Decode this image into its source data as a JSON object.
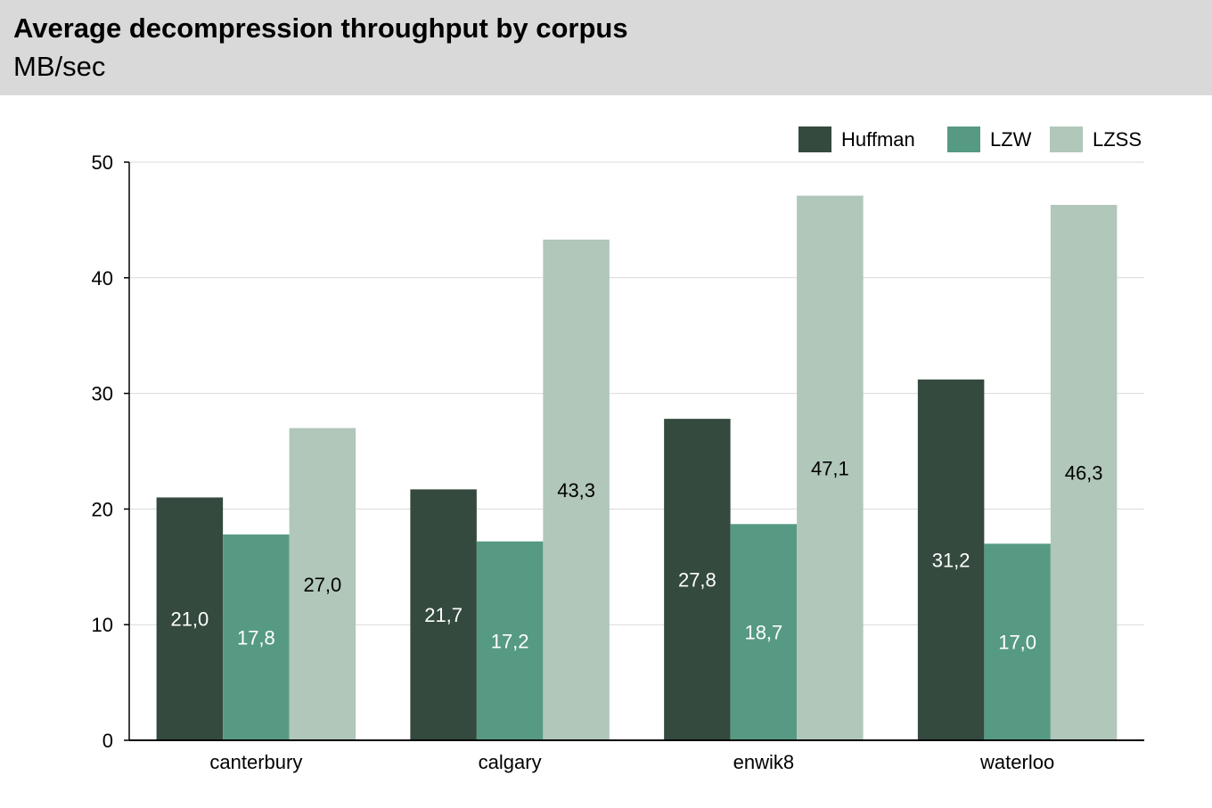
{
  "header": {
    "title": "Average decompression throughput by corpus",
    "subtitle": "MB/sec"
  },
  "chart_data": {
    "type": "bar",
    "title": "Average decompression throughput by corpus",
    "subtitle": "MB/sec",
    "xlabel": "",
    "ylabel": "",
    "categories": [
      "canterbury",
      "calgary",
      "enwik8",
      "waterloo"
    ],
    "series": [
      {
        "name": "Huffman",
        "values": [
          21.0,
          21.7,
          27.8,
          31.2
        ],
        "labels": [
          "21,0",
          "21,7",
          "27,8",
          "31,2"
        ],
        "color": "#344a3e",
        "label_color": "#ffffff"
      },
      {
        "name": "LZW",
        "values": [
          17.8,
          17.2,
          18.7,
          17.0
        ],
        "labels": [
          "17,8",
          "17,2",
          "18,7",
          "17,0"
        ],
        "color": "#579a83",
        "label_color": "#ffffff"
      },
      {
        "name": "LZSS",
        "values": [
          27.0,
          43.3,
          47.1,
          46.3
        ],
        "labels": [
          "27,0",
          "43,3",
          "47,1",
          "46,3"
        ],
        "color": "#b0c7b9",
        "label_color": "#000000"
      }
    ],
    "ylim": [
      0,
      50
    ],
    "yticks": [
      "0",
      "10",
      "20",
      "30",
      "40",
      "50"
    ],
    "grid": true,
    "legend_position": "top-right"
  }
}
